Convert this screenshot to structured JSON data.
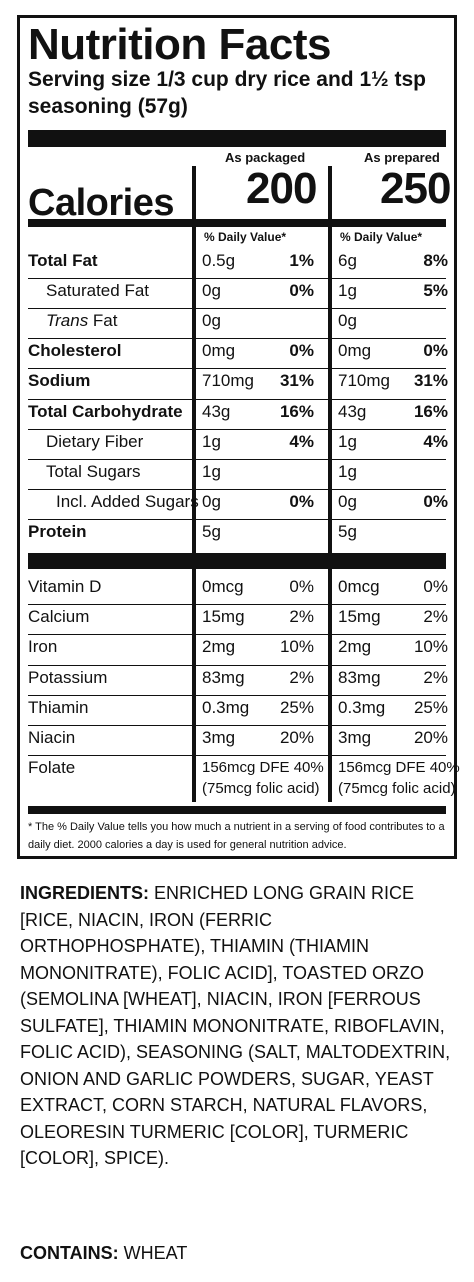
{
  "title": "Nutrition Facts",
  "serving_size": "Serving size 1/3 cup dry rice and 1½ tsp seasoning (57g)",
  "columns": [
    {
      "heading": "As packaged",
      "calories": "200",
      "dv_heading": "% Daily Value*"
    },
    {
      "heading": "As prepared",
      "calories": "250",
      "dv_heading": "% Daily Value*"
    }
  ],
  "calories_label": "Calories",
  "nutrients": [
    {
      "name": "Total Fat",
      "style": "bold",
      "indent": 0,
      "pkg_amt": "0.5g",
      "pkg_dv": "1%",
      "prep_amt": "6g",
      "prep_dv": "8%"
    },
    {
      "name": "Saturated Fat",
      "style": "normal",
      "indent": 1,
      "pkg_amt": "0g",
      "pkg_dv": "0%",
      "prep_amt": "1g",
      "prep_dv": "5%"
    },
    {
      "name_italic": "Trans",
      "name": " Fat",
      "style": "normal",
      "indent": 1,
      "pkg_amt": "0g",
      "pkg_dv": "",
      "prep_amt": "0g",
      "prep_dv": ""
    },
    {
      "name": "Cholesterol",
      "style": "bold",
      "indent": 0,
      "pkg_amt": "0mg",
      "pkg_dv": "0%",
      "prep_amt": "0mg",
      "prep_dv": "0%"
    },
    {
      "name": "Sodium",
      "style": "bold",
      "indent": 0,
      "pkg_amt": "710mg",
      "pkg_dv": "31%",
      "prep_amt": "710mg",
      "prep_dv": "31%"
    },
    {
      "name": "Total Carbohydrate",
      "style": "bold",
      "indent": 0,
      "pkg_amt": "43g",
      "pkg_dv": "16%",
      "prep_amt": "43g",
      "prep_dv": "16%"
    },
    {
      "name": "Dietary Fiber",
      "style": "normal",
      "indent": 1,
      "pkg_amt": "1g",
      "pkg_dv": "4%",
      "prep_amt": "1g",
      "prep_dv": "4%"
    },
    {
      "name": "Total Sugars",
      "style": "normal",
      "indent": 1,
      "pkg_amt": "1g",
      "pkg_dv": "",
      "prep_amt": "1g",
      "prep_dv": ""
    },
    {
      "name": "Incl. Added Sugars",
      "style": "normal",
      "indent": 2,
      "pkg_amt": "0g",
      "pkg_dv": "0%",
      "prep_amt": "0g",
      "prep_dv": "0%"
    },
    {
      "name": "Protein",
      "style": "bold",
      "indent": 0,
      "pkg_amt": "5g",
      "pkg_dv": "",
      "prep_amt": "5g",
      "prep_dv": ""
    }
  ],
  "vitamins": [
    {
      "name": "Vitamin D",
      "pkg_amt": "0mcg",
      "pkg_dv": "0%",
      "prep_amt": "0mcg",
      "prep_dv": "0%"
    },
    {
      "name": "Calcium",
      "pkg_amt": "15mg",
      "pkg_dv": "2%",
      "prep_amt": "15mg",
      "prep_dv": "2%"
    },
    {
      "name": "Iron",
      "pkg_amt": "2mg",
      "pkg_dv": "10%",
      "prep_amt": "2mg",
      "prep_dv": "10%"
    },
    {
      "name": "Potassium",
      "pkg_amt": "83mg",
      "pkg_dv": "2%",
      "prep_amt": "83mg",
      "prep_dv": "2%"
    },
    {
      "name": "Thiamin",
      "pkg_amt": "0.3mg",
      "pkg_dv": "25%",
      "prep_amt": "0.3mg",
      "prep_dv": "25%"
    },
    {
      "name": "Niacin",
      "pkg_amt": "3mg",
      "pkg_dv": "20%",
      "prep_amt": "3mg",
      "prep_dv": "20%"
    }
  ],
  "folate": {
    "name": "Folate",
    "pkg_line1": "156mcg DFE 40%",
    "pkg_line2": "(75mcg folic acid)",
    "prep_line1": "156mcg DFE 40%",
    "prep_line2": "(75mcg folic acid)"
  },
  "footnote": "* The % Daily Value tells you how much a nutrient in a serving of food contributes to a daily diet. 2000 calories a day is used for general nutrition advice.",
  "ingredients_label": "INGREDIENTS:",
  "ingredients_text": " ENRICHED LONG GRAIN RICE [RICE, NIACIN, IRON (FERRIC ORTHOPHOSPHATE),  THIAMIN (THIAMIN MONONITRATE), FOLIC ACID], TOASTED ORZO (SEMOLINA [WHEAT], NIACIN, IRON [FERROUS SULFATE], THIAMIN MONONITRATE, RIBOFLAVIN, FOLIC ACID), SEASONING (SALT, MALTODEXTRIN, ONION AND GARLIC POWDERS, SUGAR, YEAST EXTRACT, CORN STARCH, NATURAL FLAVORS, OLEORESIN TURMERIC [COLOR], TURMERIC [COLOR], SPICE).",
  "contains_label": "CONTAINS:",
  "contains_text": " WHEAT"
}
